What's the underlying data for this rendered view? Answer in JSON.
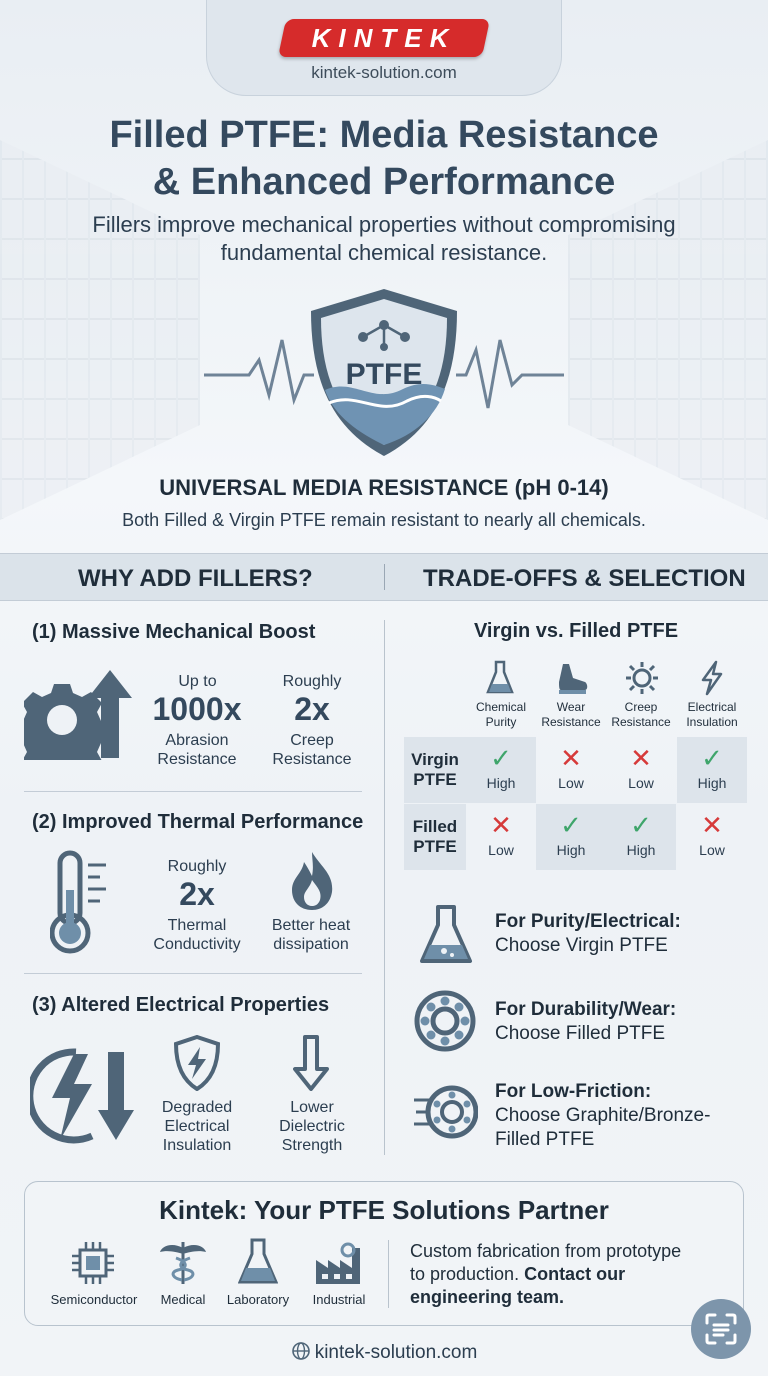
{
  "brand": {
    "logo_text": "KINTEK",
    "url_top": "kintek-solution.com",
    "url_bottom": "kintek-solution.com",
    "accent": "#d62b2b"
  },
  "header": {
    "title_line1": "Filled PTFE: Media Resistance",
    "title_line2": "& Enhanced Performance",
    "subtitle_line1": "Fillers improve mechanical properties without compromising",
    "subtitle_line2": "fundamental chemical resistance."
  },
  "hero": {
    "shield_text": "PTFE",
    "heading": "UNIVERSAL MEDIA RESISTANCE (pH 0-14)",
    "subheading": "Both Filled & Virgin PTFE remain resistant to nearly all chemicals."
  },
  "columns": {
    "left": "WHY ADD FILLERS?",
    "right": "TRADE-OFFS & SELECTION"
  },
  "fillers": {
    "mechanical": {
      "label": "(1) Massive Mechanical Boost",
      "s1_pre": "Up to",
      "s1_val": "1000x",
      "s1_l1": "Abrasion",
      "s1_l2": "Resistance",
      "s2_pre": "Roughly",
      "s2_val": "2x",
      "s2_l1": "Creep",
      "s2_l2": "Resistance"
    },
    "thermal": {
      "label": "(2) Improved Thermal Performance",
      "s1_pre": "Roughly",
      "s1_val": "2x",
      "s1_l1": "Thermal",
      "s1_l2": "Conductivity",
      "s2_l1": "Better heat",
      "s2_l2": "dissipation"
    },
    "electrical": {
      "label": "(3) Altered Electrical Properties",
      "s1_l1": "Degraded",
      "s1_l2": "Electrical",
      "s1_l3": "Insulation",
      "s2_l1": "Lower",
      "s2_l2": "Dielectric",
      "s2_l3": "Strength"
    }
  },
  "comparison": {
    "title": "Virgin vs. Filled PTFE",
    "headers": [
      {
        "l1": "Chemical",
        "l2": "Purity",
        "icon": "flask-icon"
      },
      {
        "l1": "Wear",
        "l2": "Resistance",
        "icon": "shoe-icon"
      },
      {
        "l1": "Creep",
        "l2": "Resistance",
        "icon": "gear-sun-icon"
      },
      {
        "l1": "Electrical",
        "l2": "Insulation",
        "icon": "bolt-icon"
      }
    ],
    "rows": [
      {
        "l1": "Virgin",
        "l2": "PTFE",
        "cells": [
          {
            "mark": "✓",
            "value": "High"
          },
          {
            "mark": "✕",
            "value": "Low"
          },
          {
            "mark": "✕",
            "value": "Low"
          },
          {
            "mark": "✓",
            "value": "High"
          }
        ]
      },
      {
        "l1": "Filled",
        "l2": "PTFE",
        "cells": [
          {
            "mark": "✕",
            "value": "Low"
          },
          {
            "mark": "✓",
            "value": "High"
          },
          {
            "mark": "✓",
            "value": "High"
          },
          {
            "mark": "✕",
            "value": "Low"
          }
        ]
      }
    ]
  },
  "recommendations": [
    {
      "bold": "For Purity/Electrical:",
      "text": "Choose Virgin PTFE"
    },
    {
      "bold": "For Durability/Wear:",
      "text": "Choose Filled PTFE"
    },
    {
      "bold": "For Low-Friction:",
      "text_l1": "Choose Graphite/Bronze-",
      "text_l2": "Filled PTFE"
    }
  ],
  "partner": {
    "title": "Kintek: Your PTFE Solutions Partner",
    "industries": [
      "Semiconductor",
      "Medical",
      "Laboratory",
      "Industrial"
    ],
    "text_l1": "Custom fabrication from prototype",
    "text_l2a": "to production. ",
    "text_l2b": "Contact our",
    "text_l3": "engineering team."
  }
}
